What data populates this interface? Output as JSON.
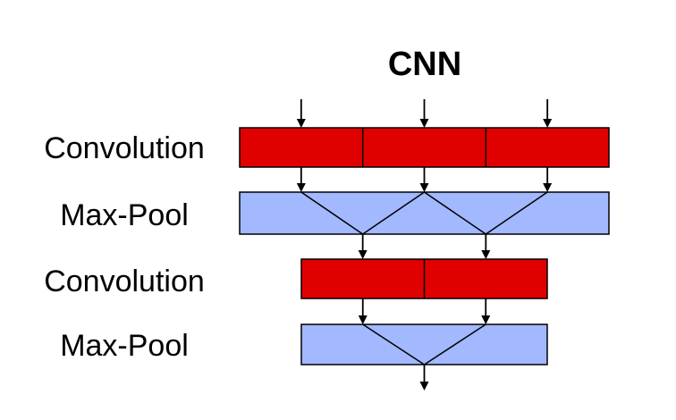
{
  "title": "CNN",
  "layers": [
    {
      "label": "Convolution",
      "kind": "convolution",
      "units": 3
    },
    {
      "label": "Max-Pool",
      "kind": "max-pool",
      "inputs": 3
    },
    {
      "label": "Convolution",
      "kind": "convolution",
      "units": 2
    },
    {
      "label": "Max-Pool",
      "kind": "max-pool",
      "inputs": 2
    }
  ],
  "colors": {
    "convolution": "#e00000",
    "max_pool": "#a2b8ff",
    "stroke": "#000000"
  },
  "icons": {
    "flow": "down-arrow"
  }
}
